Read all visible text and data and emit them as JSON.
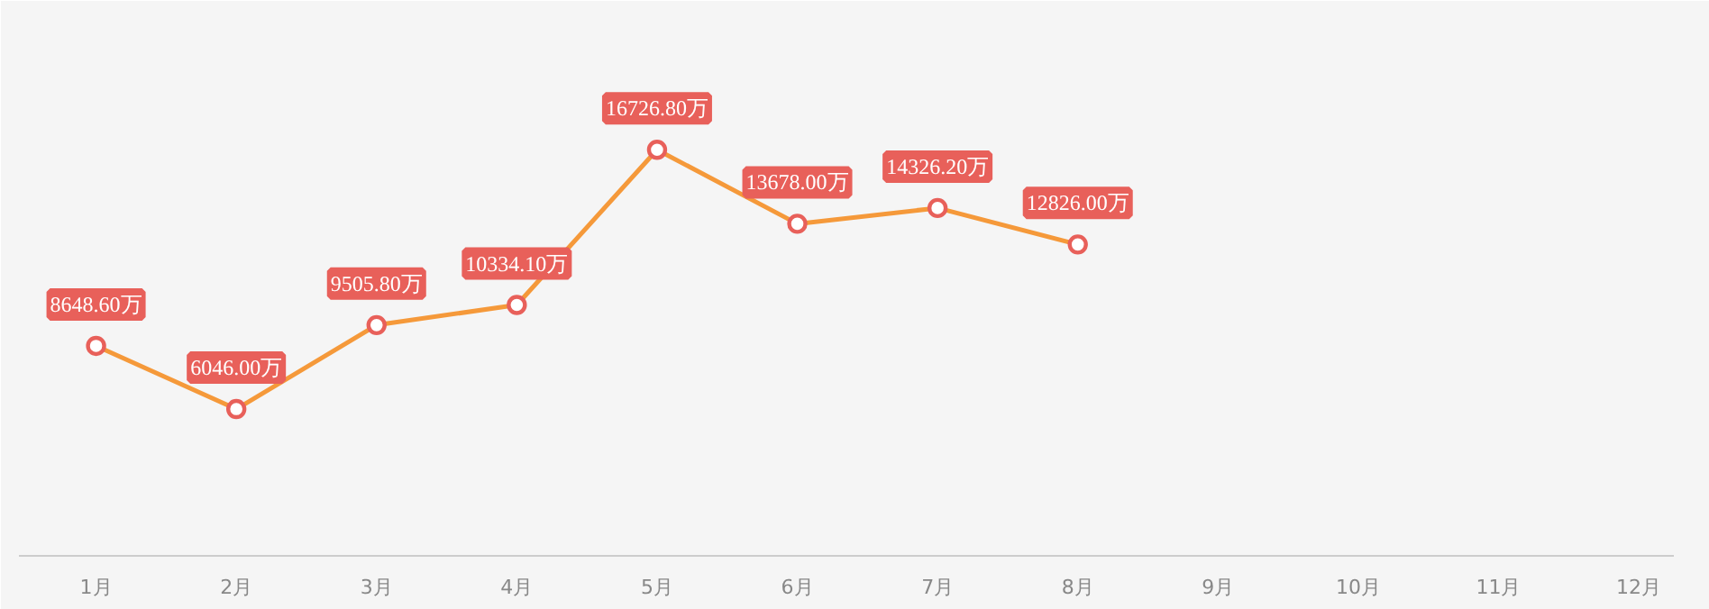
{
  "chart_data": {
    "type": "line",
    "categories": [
      "1月",
      "2月",
      "3月",
      "4月",
      "5月",
      "6月",
      "7月",
      "8月",
      "9月",
      "10月",
      "11月",
      "12月"
    ],
    "series": [
      {
        "color": "#f5993a",
        "values": [
          8648.6,
          6046.0,
          9505.8,
          10334.1,
          16726.8,
          13678.0,
          14326.2,
          12826.0,
          null,
          null,
          null,
          null
        ],
        "value_labels": [
          "8648.60万",
          "6046.00万",
          "9505.80万",
          "10334.10万",
          "16726.80万",
          "13678.00万",
          "14326.20万",
          "12826.00万",
          null,
          null,
          null,
          null
        ]
      }
    ],
    "marker": "circle",
    "line_style": "solid"
  }
}
